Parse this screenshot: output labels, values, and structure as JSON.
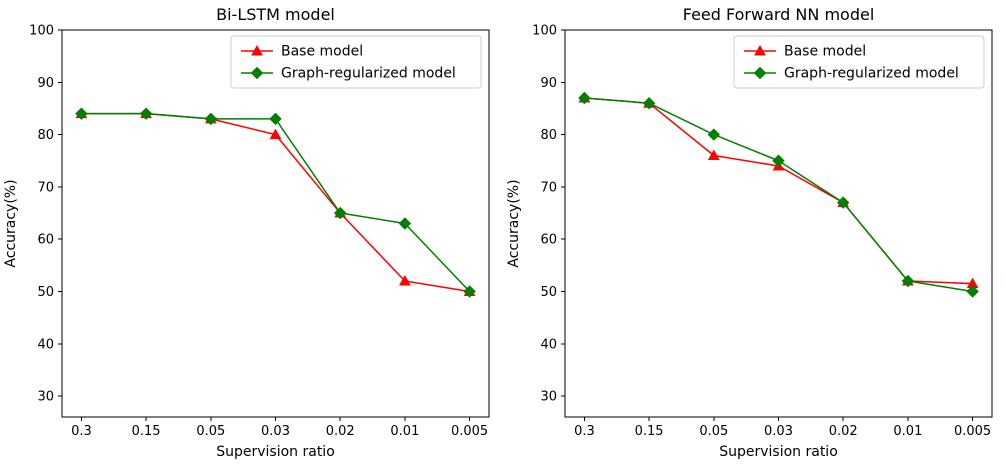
{
  "figure": {
    "background": "#ffffff"
  },
  "chart_data": [
    {
      "type": "line",
      "title": "Bi-LSTM model",
      "xlabel": "Supervision ratio",
      "ylabel": "Accuracy(%)",
      "categories": [
        "0.3",
        "0.15",
        "0.05",
        "0.03",
        "0.02",
        "0.01",
        "0.005"
      ],
      "yticks": [
        30,
        40,
        50,
        60,
        70,
        80,
        90,
        100
      ],
      "ylim": [
        26,
        100
      ],
      "grid": false,
      "legend_position": "upper right",
      "series": [
        {
          "name": "Base model",
          "color": "#ff0000",
          "marker": "triangle",
          "values": [
            84,
            84,
            83,
            80,
            65,
            52,
            50
          ]
        },
        {
          "name": "Graph-regularized model",
          "color": "#008000",
          "marker": "diamond",
          "values": [
            84,
            84,
            83,
            83,
            65,
            63,
            50
          ]
        }
      ]
    },
    {
      "type": "line",
      "title": "Feed Forward NN model",
      "xlabel": "Supervision ratio",
      "ylabel": "Accuracy(%)",
      "categories": [
        "0.3",
        "0.15",
        "0.05",
        "0.03",
        "0.02",
        "0.01",
        "0.005"
      ],
      "yticks": [
        30,
        40,
        50,
        60,
        70,
        80,
        90,
        100
      ],
      "ylim": [
        26,
        100
      ],
      "grid": false,
      "legend_position": "upper right",
      "series": [
        {
          "name": "Base model",
          "color": "#ff0000",
          "marker": "triangle",
          "values": [
            87,
            86,
            76,
            74,
            67,
            52,
            51.5
          ]
        },
        {
          "name": "Graph-regularized model",
          "color": "#008000",
          "marker": "diamond",
          "values": [
            87,
            86,
            80,
            75,
            67,
            52,
            50
          ]
        }
      ]
    }
  ]
}
